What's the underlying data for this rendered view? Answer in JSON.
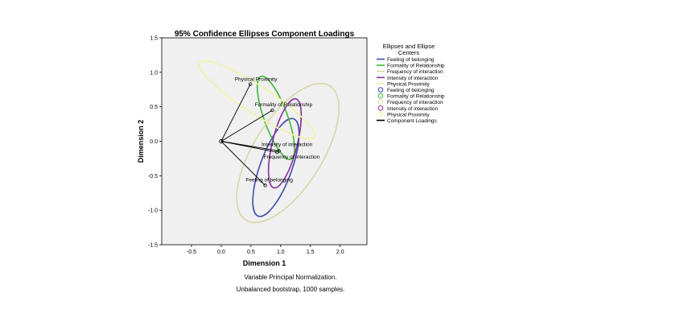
{
  "chart_data": {
    "type": "scatter",
    "title": "95% Confidence Ellipses Component Loadings",
    "xlabel": "Dimension 1",
    "ylabel": "Dimension 2",
    "xlim": [
      -1.0,
      2.45
    ],
    "ylim": [
      -1.5,
      1.5
    ],
    "xticks": [
      -0.5,
      0.0,
      0.5,
      1.0,
      1.5,
      2.0
    ],
    "yticks": [
      -1.5,
      -1.0,
      -0.5,
      0.0,
      0.5,
      1.0,
      1.5
    ],
    "xtick_labels": [
      "-0.5",
      "0.0",
      "0.5",
      "1.0",
      "1.5",
      "2.0"
    ],
    "ytick_labels": [
      "-1.5",
      "-1.0",
      "-0.5",
      "0.0",
      "0.5",
      "1.0",
      "1.5"
    ],
    "grid": false,
    "plot_background": "#f0f0f0",
    "legend_position": "right",
    "legend_title": "Ellipses and Ellipse Centers",
    "origin": [
      0.0,
      0.0
    ],
    "variables": [
      {
        "name": "Feeling of belonging",
        "color": "#3f4ea8",
        "point": [
          0.74,
          -0.64
        ],
        "ellipse": {
          "cx": 0.92,
          "cy": -0.38,
          "rx": 0.87,
          "ry": 0.23,
          "angle": 70
        }
      },
      {
        "name": "Formality of Relationship",
        "color": "#3bb83b",
        "point": [
          0.86,
          0.45
        ],
        "ellipse": {
          "cx": 0.92,
          "cy": 0.34,
          "rx": 0.74,
          "ry": 0.17,
          "angle": -70
        }
      },
      {
        "name": "Frequency of interaction",
        "color": "#d8d8a8",
        "point": [
          0.94,
          -0.16
        ],
        "ellipse": {
          "cx": 1.12,
          "cy": -0.17,
          "rx": 1.33,
          "ry": 0.5,
          "angle": 58
        }
      },
      {
        "name": "Intensity of interaction",
        "color": "#8a2e9e",
        "point": [
          0.97,
          -0.14
        ],
        "ellipse": {
          "cx": 1.07,
          "cy": -0.03,
          "rx": 0.77,
          "ry": 0.18,
          "angle": 76
        }
      },
      {
        "name": "Physical Proximity",
        "color": "#f2f2a6",
        "point": [
          0.49,
          0.83
        ],
        "ellipse": {
          "cx": 0.6,
          "cy": 0.6,
          "rx": 1.15,
          "ry": 0.2,
          "angle": -33
        }
      }
    ],
    "legend_entries": [
      {
        "label": "Feeling of belonging",
        "kind": "line",
        "color": "#3f4ea8"
      },
      {
        "label": "Formality of Relationship",
        "kind": "line",
        "color": "#3bb83b"
      },
      {
        "label": "Frequency of interaction",
        "kind": "line",
        "color": "#d8d8a8"
      },
      {
        "label": "Intensity of interaction",
        "kind": "line",
        "color": "#8a2e9e"
      },
      {
        "label": "Physical Proximity",
        "kind": "line",
        "color": "#f2f2a6"
      },
      {
        "label": "Feeling of belonging",
        "kind": "circle",
        "color": "#3f4ea8"
      },
      {
        "label": "Formality of Relationship",
        "kind": "circle",
        "color": "#3bb83b"
      },
      {
        "label": "Frequency of interaction",
        "kind": "circle",
        "color": "#d8d8a8"
      },
      {
        "label": "Intensity of interaction",
        "kind": "circle",
        "color": "#8a2e9e"
      },
      {
        "label": "Physical Proximity",
        "kind": "circle",
        "color": "#f2f2a6"
      },
      {
        "label": "Component Loadings",
        "kind": "line",
        "color": "#000000"
      }
    ],
    "footnotes": [
      "Variable Principal Normalization.",
      "Unbalanced bootstrap, 1000 samples."
    ]
  }
}
